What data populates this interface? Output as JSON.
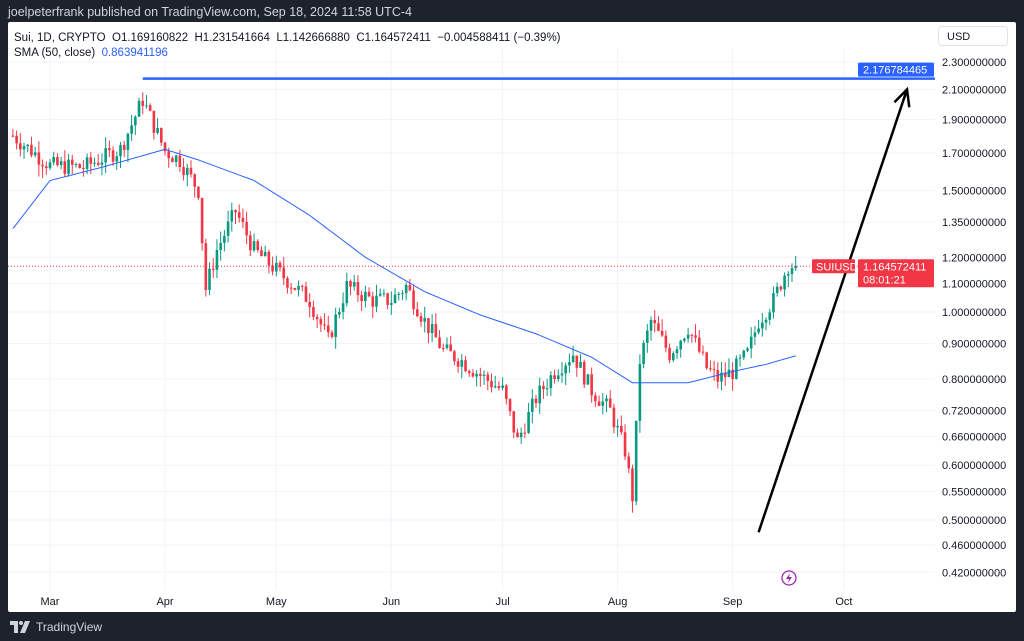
{
  "header": {
    "published": "joelpeterfrank published on TradingView.com, Sep 18, 2024 11:58 UTC-4"
  },
  "legend": {
    "symbol": "Sui, 1D, CRYPTO",
    "open": "O1.169160822",
    "high": "H1.231541664",
    "low": "L1.142666880",
    "close": "C1.164572411",
    "change": "−0.004588411 (−0.39%)",
    "sma_label": "SMA (50, close)",
    "sma_value": "0.863941196"
  },
  "currency": "USD",
  "footer": {
    "brand": "TradingView"
  },
  "colors": {
    "up": "#089981",
    "down": "#f23645",
    "sma": "#2962ff",
    "hline": "#2962ff",
    "price_label": "#f23645"
  },
  "chart_data": {
    "type": "candlestick",
    "scale": "log",
    "ylim": [
      0.4,
      2.45
    ],
    "xlim": [
      "2024-02-20",
      "2024-10-16"
    ],
    "y_ticks": [
      "2.300000000",
      "2.100000000",
      "1.900000000",
      "1.700000000",
      "1.500000000",
      "1.350000000",
      "1.200000000",
      "1.100000000",
      "1.000000000",
      "0.900000000",
      "0.800000000",
      "0.720000000",
      "0.660000000",
      "0.600000000",
      "0.550000000",
      "0.500000000",
      "0.460000000",
      "0.420000000"
    ],
    "x_ticks": [
      {
        "label": "Mar",
        "date": "2024-03-01"
      },
      {
        "label": "Apr",
        "date": "2024-04-01"
      },
      {
        "label": "May",
        "date": "2024-05-01"
      },
      {
        "label": "Jun",
        "date": "2024-06-01"
      },
      {
        "label": "Jul",
        "date": "2024-07-01"
      },
      {
        "label": "Aug",
        "date": "2024-08-01"
      },
      {
        "label": "Sep",
        "date": "2024-09-01"
      },
      {
        "label": "Oct",
        "date": "2024-10-01"
      }
    ],
    "close_path": [
      [
        "2024-02-20",
        1.8
      ],
      [
        "2024-03-01",
        1.63
      ],
      [
        "2024-03-10",
        1.62
      ],
      [
        "2024-03-20",
        1.72
      ],
      [
        "2024-03-26",
        2.03
      ],
      [
        "2024-04-01",
        1.71
      ],
      [
        "2024-04-05",
        1.66
      ],
      [
        "2024-04-10",
        1.5
      ],
      [
        "2024-04-12",
        1.08
      ],
      [
        "2024-04-15",
        1.23
      ],
      [
        "2024-04-20",
        1.4
      ],
      [
        "2024-04-25",
        1.23
      ],
      [
        "2024-05-01",
        1.15
      ],
      [
        "2024-05-10",
        1.04
      ],
      [
        "2024-05-15",
        0.91
      ],
      [
        "2024-05-20",
        1.09
      ],
      [
        "2024-05-27",
        1.04
      ],
      [
        "2024-06-01",
        1.04
      ],
      [
        "2024-06-05",
        1.09
      ],
      [
        "2024-06-10",
        0.97
      ],
      [
        "2024-06-15",
        0.88
      ],
      [
        "2024-06-20",
        0.85
      ],
      [
        "2024-06-25",
        0.81
      ],
      [
        "2024-07-01",
        0.77
      ],
      [
        "2024-07-05",
        0.65
      ],
      [
        "2024-07-10",
        0.75
      ],
      [
        "2024-07-15",
        0.82
      ],
      [
        "2024-07-20",
        0.87
      ],
      [
        "2024-07-25",
        0.77
      ],
      [
        "2024-07-30",
        0.72
      ],
      [
        "2024-08-03",
        0.63
      ],
      [
        "2024-08-05",
        0.54
      ],
      [
        "2024-08-07",
        0.85
      ],
      [
        "2024-08-10",
        0.97
      ],
      [
        "2024-08-15",
        0.87
      ],
      [
        "2024-08-20",
        0.95
      ],
      [
        "2024-08-25",
        0.83
      ],
      [
        "2024-08-28",
        0.8
      ],
      [
        "2024-09-01",
        0.82
      ],
      [
        "2024-09-05",
        0.87
      ],
      [
        "2024-09-08",
        0.97
      ],
      [
        "2024-09-12",
        1.04
      ],
      [
        "2024-09-16",
        1.17
      ],
      [
        "2024-09-18",
        1.1646
      ]
    ],
    "sma_path": [
      [
        "2024-02-20",
        1.32
      ],
      [
        "2024-03-01",
        1.55
      ],
      [
        "2024-03-15",
        1.62
      ],
      [
        "2024-04-01",
        1.72
      ],
      [
        "2024-04-10",
        1.66
      ],
      [
        "2024-04-25",
        1.55
      ],
      [
        "2024-05-10",
        1.38
      ],
      [
        "2024-05-25",
        1.2
      ],
      [
        "2024-06-10",
        1.07
      ],
      [
        "2024-06-25",
        0.99
      ],
      [
        "2024-07-10",
        0.93
      ],
      [
        "2024-07-25",
        0.86
      ],
      [
        "2024-08-05",
        0.79
      ],
      [
        "2024-08-20",
        0.79
      ],
      [
        "2024-09-01",
        0.82
      ],
      [
        "2024-09-10",
        0.84
      ],
      [
        "2024-09-18",
        0.864
      ]
    ],
    "horizontal_line": {
      "value": 2.176784465,
      "label": "2.176784465",
      "from": "2024-03-26"
    },
    "current_price": {
      "symbol": "SUIUSD",
      "value": 1.164572411,
      "label": "1.164572411",
      "countdown": "08:01:21"
    },
    "arrow": {
      "from": [
        "2024-09-08",
        0.48
      ],
      "to": [
        "2024-10-18",
        2.1
      ]
    }
  }
}
